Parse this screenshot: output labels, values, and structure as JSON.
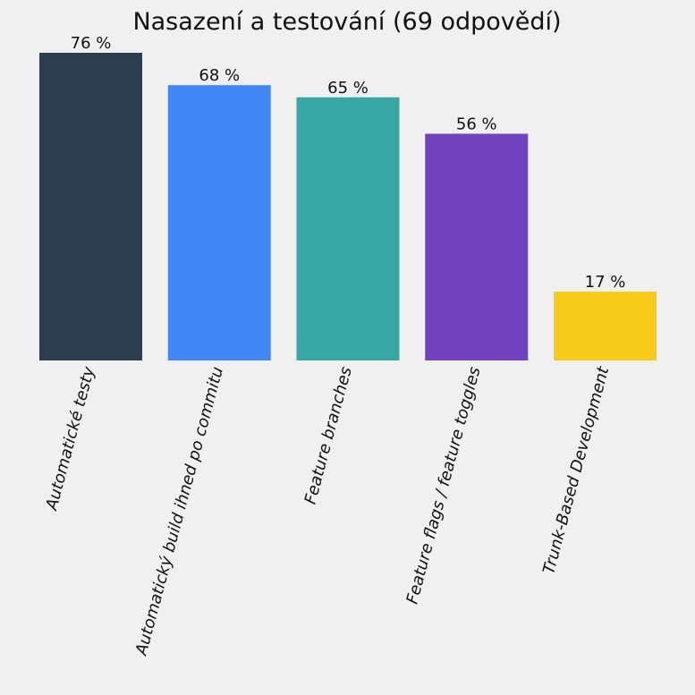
{
  "chart_data": {
    "type": "bar",
    "title": "Nasazení a testování (69 odpovědí)",
    "xlabel": "",
    "ylabel": "",
    "ylim": [
      0,
      80
    ],
    "grid": false,
    "legend": "none",
    "categories": [
      "Automatické testy",
      "Automatický build ihned po commitu",
      "Feature branches",
      "Feature flags / feature toggles",
      "Trunk-Based Development"
    ],
    "values": [
      76,
      68,
      65,
      56,
      17
    ],
    "value_labels": [
      "76 %",
      "68 %",
      "65 %",
      "56 %",
      "17 %"
    ],
    "colors": [
      "#2e3e50",
      "#4287f5",
      "#37a6a4",
      "#7143bf",
      "#f7cb1c"
    ]
  }
}
